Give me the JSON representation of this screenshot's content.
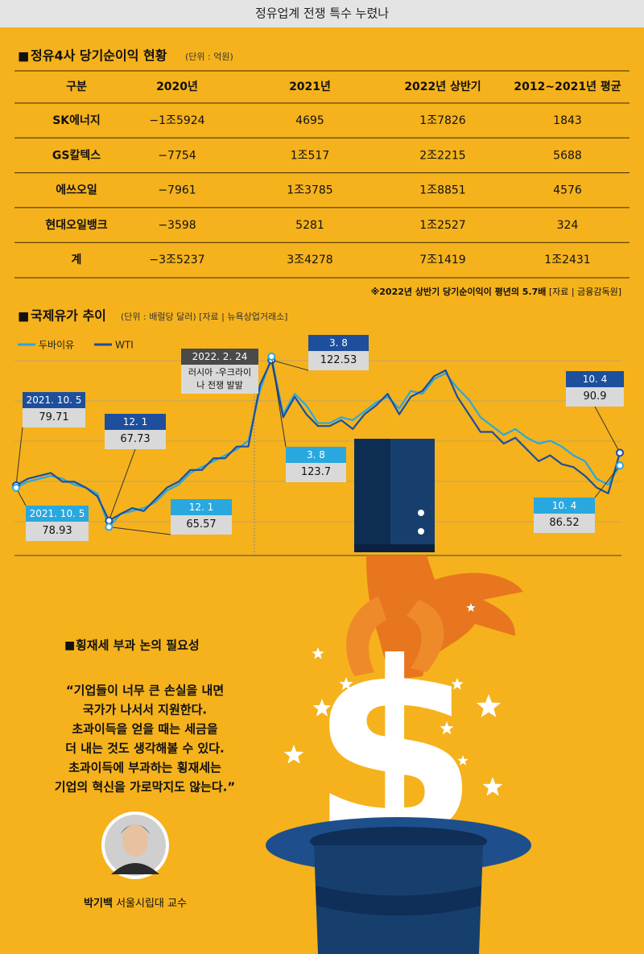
{
  "header": {
    "title": "정유업계 전쟁 특수 누렸나"
  },
  "table": {
    "title": "정유4사 당기순이익 현황",
    "unit": "(단위 : 억원)",
    "columns": [
      "구분",
      "2020년",
      "2021년",
      "2022년 상반기",
      "2012~2021년 평균"
    ],
    "rows": [
      [
        "SK에너지",
        "−1조5924",
        "4695",
        "1조7826",
        "1843"
      ],
      [
        "GS칼텍스",
        "−7754",
        "1조517",
        "2조2215",
        "5688"
      ],
      [
        "에쓰오일",
        "−7961",
        "1조3785",
        "1조8851",
        "4576"
      ],
      [
        "현대오일뱅크",
        "−3598",
        "5281",
        "1조2527",
        "324"
      ],
      [
        "계",
        "−3조5237",
        "3조4278",
        "7조1419",
        "1조2431"
      ]
    ],
    "note": "※2022년 상반기 당기순이익이 평년의 5.7배",
    "source": "[자료 | 금융감독원]"
  },
  "chart_data": {
    "type": "line",
    "title": "국제유가 추이",
    "subtitle": "(단위 : 배럴당 달러) [자료 | 뉴욕상업거래소]",
    "categories": [
      "2021. 10. 5",
      null,
      null,
      null,
      null,
      null,
      null,
      null,
      "12. 1",
      null,
      null,
      null,
      null,
      null,
      null,
      null,
      null,
      null,
      null,
      null,
      "2022. 2. 24",
      null,
      "3. 8",
      null,
      null,
      null,
      null,
      null,
      null,
      null,
      null,
      null,
      null,
      null,
      null,
      null,
      null,
      null,
      null,
      null,
      null,
      null,
      null,
      null,
      null,
      null,
      null,
      null,
      null,
      null,
      null,
      null,
      "10. 4"
    ],
    "series": [
      {
        "name": "두바이유",
        "color": "#29a8e0",
        "values": [
          78.93,
          81,
          82,
          83,
          82,
          80,
          79,
          77,
          65.57,
          70,
          71,
          72,
          74,
          78,
          80,
          84,
          86,
          88,
          90,
          92,
          95,
          112,
          123.7,
          104,
          111,
          107,
          101,
          101,
          103,
          102,
          105,
          108,
          110,
          106,
          112,
          111,
          116,
          118,
          113,
          109,
          103,
          100,
          97,
          99,
          96,
          94,
          95,
          93,
          90,
          88,
          82,
          80,
          86.52
        ]
      },
      {
        "name": "WTI",
        "color": "#1d4f9c",
        "values": [
          79.71,
          82,
          83,
          84,
          81,
          81,
          79,
          76,
          67.73,
          70,
          72,
          71,
          75,
          79,
          81,
          85,
          85,
          89,
          89,
          93,
          93,
          114,
          122.53,
          103,
          110,
          104,
          100,
          100,
          102,
          99,
          104,
          107,
          111,
          104,
          110,
          112,
          117,
          119,
          110,
          104,
          98,
          98,
          94,
          96,
          92,
          88,
          90,
          87,
          86,
          83,
          79,
          77,
          90.9
        ]
      }
    ],
    "ylim": [
      55,
      130
    ],
    "annotations": [
      "러시아 -우크라이나 전쟁 발발"
    ]
  },
  "quote": {
    "title": "횡재세 부과 논의 필요성",
    "lines": [
      "“기업들이 너무 큰 손실을 내면",
      "국가가 나서서 지원한다.",
      "초과이득을 얻을 때는 세금을",
      "더 내는 것도 생각해볼 수 있다.",
      "초과이득에 부과하는 횡재세는",
      "기업의 혁신을 가로막지도 않는다.”"
    ],
    "speaker": "박기백",
    "affiliation": "서울시립대 교수"
  }
}
